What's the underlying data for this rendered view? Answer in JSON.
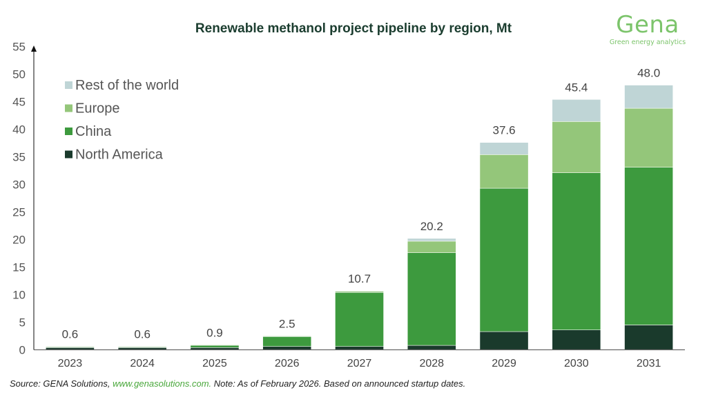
{
  "logo": {
    "word": "Gena",
    "tagline": "Green energy analytics"
  },
  "footer": {
    "source_prefix": "Source: GENA Solutions, ",
    "link": "www.genasolutions.com.",
    "note": " Note: As of February 2026. Based on announced startup dates."
  },
  "chart_data": {
    "type": "bar",
    "stacked": true,
    "title": "Renewable methanol project pipeline by region, Mt",
    "xlabel": "",
    "ylabel": "",
    "ylim": [
      0,
      55
    ],
    "yticks": [
      0,
      5,
      10,
      15,
      20,
      25,
      30,
      35,
      40,
      45,
      50,
      55
    ],
    "grid": false,
    "legend_position": "top-left",
    "categories": [
      "2023",
      "2024",
      "2025",
      "2026",
      "2027",
      "2028",
      "2029",
      "2030",
      "2031"
    ],
    "series": [
      {
        "name": "North America",
        "color": "#1a3a2c",
        "values": [
          0.4,
          0.4,
          0.4,
          0.6,
          0.6,
          0.8,
          3.3,
          3.6,
          4.5
        ]
      },
      {
        "name": "China",
        "color": "#3d9a3e",
        "values": [
          0.15,
          0.15,
          0.45,
          1.8,
          9.8,
          16.8,
          26.0,
          28.5,
          28.6
        ]
      },
      {
        "name": "Europe",
        "color": "#94c67a",
        "values": [
          0.05,
          0.05,
          0.05,
          0.1,
          0.2,
          2.1,
          6.1,
          9.3,
          10.7
        ]
      },
      {
        "name": "Rest of the world",
        "color": "#bfd5d6",
        "values": [
          0.0,
          0.0,
          0.0,
          0.0,
          0.1,
          0.5,
          2.2,
          4.0,
          4.2
        ]
      }
    ],
    "totals": [
      "0.6",
      "0.6",
      "0.9",
      "2.5",
      "10.7",
      "20.2",
      "37.6",
      "45.4",
      "48.0"
    ],
    "legend_order": [
      "Rest of the world",
      "Europe",
      "China",
      "North America"
    ]
  }
}
